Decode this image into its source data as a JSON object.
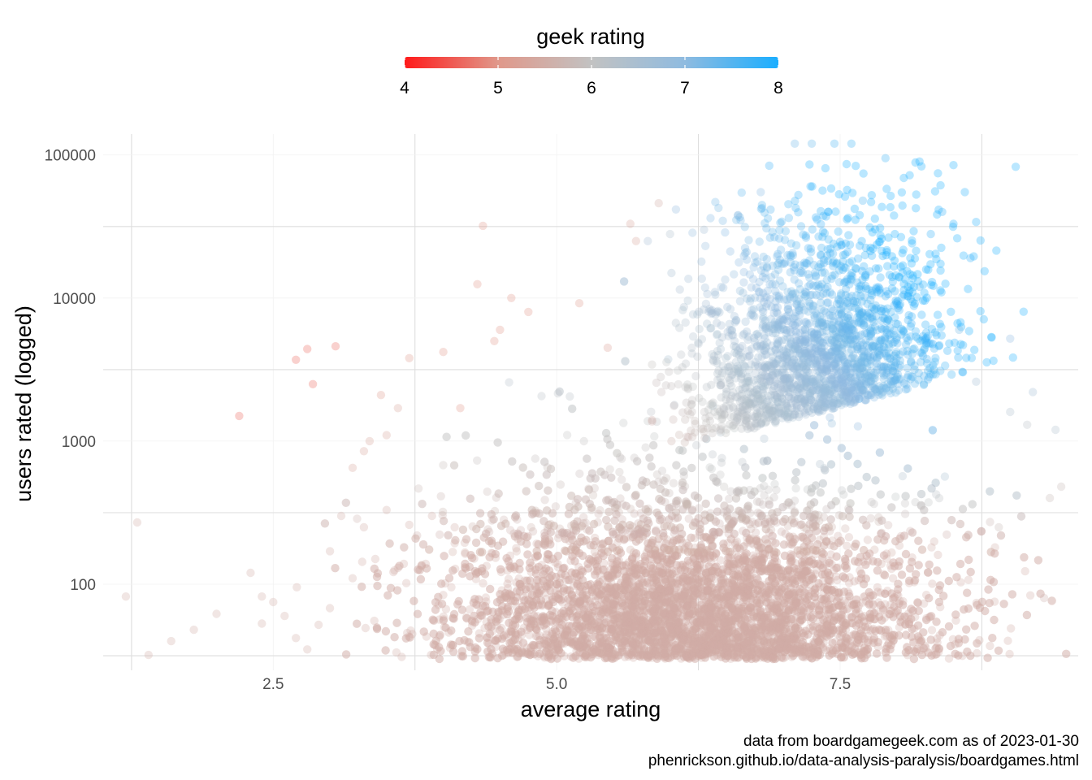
{
  "chart_data": {
    "type": "scatter",
    "title": "",
    "xlabel": "average rating",
    "ylabel": "users rated (logged)",
    "x_scale": "linear",
    "y_scale": "log10",
    "xlim": [
      1.0,
      9.6
    ],
    "ylim": [
      25,
      140000
    ],
    "x_ticks": [
      2.5,
      5.0,
      7.5
    ],
    "x_tick_labels": [
      "2.5",
      "5.0",
      "7.5"
    ],
    "y_ticks": [
      100,
      1000,
      10000,
      100000
    ],
    "y_tick_labels": [
      "100",
      "1000",
      "10000",
      "100000"
    ],
    "grid": true,
    "point_opacity": 0.3,
    "color_legend": {
      "title": "geek rating",
      "position": "top",
      "range": [
        4,
        8
      ],
      "ticks": [
        4,
        5,
        6,
        7,
        8
      ],
      "tick_labels": [
        "4",
        "5",
        "6",
        "7",
        "8"
      ],
      "colors": {
        "low": "#ff1a1a",
        "mid_low": "#e0988a",
        "mid": "#c2c2c2",
        "mid_high": "#8fbbe0",
        "high": "#1aaeff"
      }
    },
    "caption": [
      "data from boardgamegeek.com as of 2023-01-30",
      "phenrickson.github.io/data-analysis-paralysis/boardgames.html"
    ],
    "points": [
      [
        1.2,
        82,
        5.5
      ],
      [
        1.3,
        270,
        5.5
      ],
      [
        1.4,
        32,
        5.5
      ],
      [
        1.6,
        40,
        5.5
      ],
      [
        1.8,
        48,
        5.5
      ],
      [
        2.0,
        62,
        5.5
      ],
      [
        2.3,
        120,
        5.5
      ],
      [
        2.4,
        82,
        5.5
      ],
      [
        2.5,
        75,
        5.5
      ],
      [
        2.4,
        53,
        5.5
      ],
      [
        2.2,
        1500,
        4.6
      ],
      [
        2.7,
        3700,
        4.6
      ],
      [
        2.8,
        4400,
        4.6
      ],
      [
        2.85,
        2500,
        4.6
      ],
      [
        3.05,
        4600,
        4.6
      ],
      [
        2.6,
        60,
        5.5
      ],
      [
        2.7,
        42,
        5.5
      ],
      [
        2.8,
        35,
        5.5
      ],
      [
        2.9,
        52,
        5.5
      ],
      [
        3.0,
        68,
        5.5
      ],
      [
        3.2,
        650,
        5.3
      ],
      [
        3.3,
        850,
        5.3
      ],
      [
        3.35,
        1000,
        5.3
      ],
      [
        3.5,
        1100,
        5.3
      ],
      [
        3.6,
        1700,
        5.3
      ],
      [
        3.45,
        2100,
        5.1
      ],
      [
        3.7,
        3800,
        5.1
      ],
      [
        4.0,
        4200,
        5.0
      ],
      [
        4.15,
        1700,
        5.0
      ],
      [
        4.35,
        32000,
        5.0
      ],
      [
        4.3,
        12500,
        5.0
      ],
      [
        4.6,
        10000,
        5.0
      ],
      [
        4.75,
        8000,
        5.0
      ],
      [
        4.45,
        5000,
        5.0
      ],
      [
        5.2,
        9200,
        5.1
      ],
      [
        5.45,
        4500,
        5.2
      ],
      [
        5.7,
        25000,
        5.3
      ],
      [
        5.65,
        33000,
        5.3
      ],
      [
        5.9,
        46000,
        5.5
      ],
      [
        4.5,
        6000,
        5.0
      ],
      [
        3.1,
        300,
        5.5
      ],
      [
        3.0,
        170,
        5.5
      ],
      [
        3.3,
        250,
        5.5
      ],
      [
        3.5,
        330,
        5.5
      ],
      [
        3.7,
        260,
        5.5
      ],
      [
        3.2,
        110,
        5.5
      ],
      [
        3.4,
        150,
        5.5
      ],
      [
        3.6,
        130,
        5.5
      ],
      [
        3.9,
        300,
        5.5
      ],
      [
        4.1,
        250,
        5.5
      ],
      [
        9.2,
        2200,
        6.6
      ],
      [
        9.4,
        1200,
        6.4
      ],
      [
        9.45,
        480,
        5.8
      ],
      [
        9.35,
        400,
        5.8
      ],
      [
        9.15,
        1300,
        6.2
      ],
      [
        9.0,
        1600,
        6.4
      ],
      [
        9.0,
        5200,
        7.0
      ],
      [
        8.7,
        2600,
        6.6
      ],
      [
        8.9,
        250,
        5.8
      ],
      [
        9.3,
        80,
        5.6
      ],
      [
        7.25,
        120000,
        7.4
      ],
      [
        7.45,
        120000,
        7.6
      ],
      [
        7.6,
        120000,
        7.7
      ],
      [
        7.1,
        120000,
        7.3
      ],
      [
        8.2,
        90000,
        8.0
      ],
      [
        8.5,
        85000,
        8.0
      ],
      [
        7.9,
        95000,
        7.7
      ],
      [
        8.6,
        55000,
        7.9
      ],
      [
        8.7,
        34000,
        7.9
      ],
      [
        8.65,
        19000,
        7.8
      ],
      [
        8.5,
        33000,
        7.9
      ],
      [
        8.4,
        40000,
        7.8
      ],
      [
        8.3,
        28000,
        7.8
      ],
      [
        7.7,
        48000,
        7.6
      ],
      [
        6.8,
        55000,
        7.1
      ],
      [
        6.6,
        38000,
        6.9
      ],
      [
        6.3,
        30000,
        6.6
      ],
      [
        6.0,
        28000,
        6.4
      ],
      [
        8.2,
        12000,
        7.5
      ],
      [
        8.55,
        6000,
        7.2
      ]
    ]
  }
}
